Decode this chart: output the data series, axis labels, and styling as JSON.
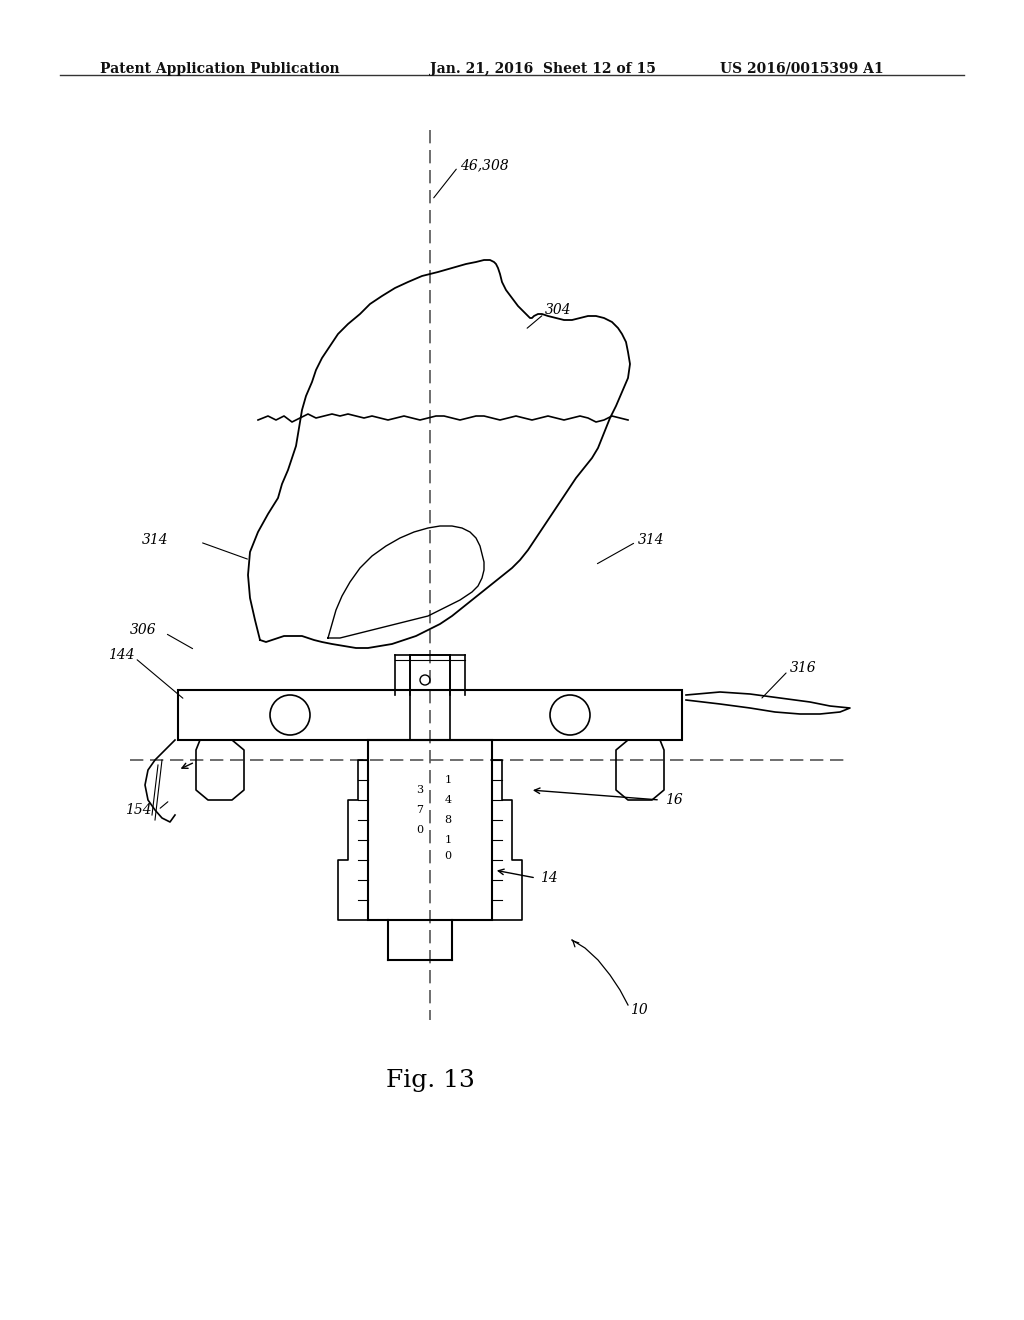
{
  "bg_color": "#ffffff",
  "header_left": "Patent Application Publication",
  "header_mid": "Jan. 21, 2016  Sheet 12 of 15",
  "header_right": "US 2016/0015399 A1",
  "fig_label": "Fig. 13",
  "labels": {
    "46_308": "46,308",
    "304": "304",
    "314_left": "314",
    "314_right": "314",
    "306": "306",
    "144": "144",
    "154": "154",
    "316": "316",
    "16": "16",
    "14": "14",
    "10": "10"
  },
  "line_color": "#000000",
  "dashed_color": "#555555"
}
